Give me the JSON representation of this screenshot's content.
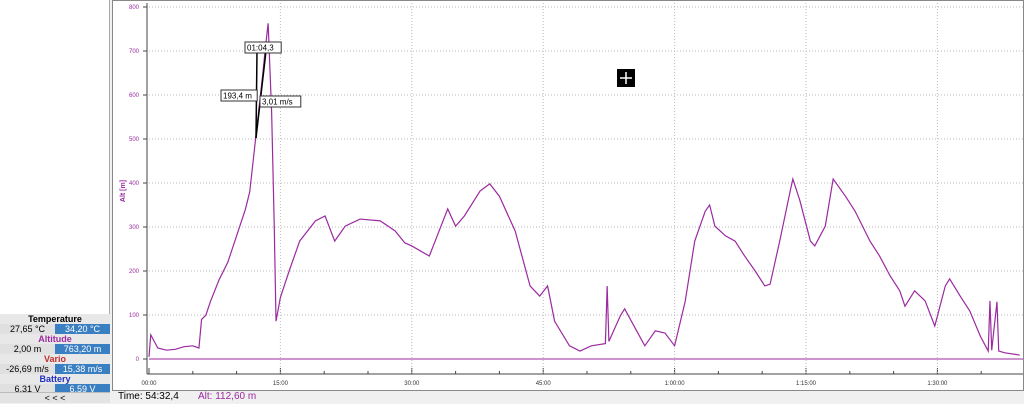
{
  "sensors": [
    {
      "title": "Temperature",
      "min": "27,65 °C",
      "max": "34,20 °C",
      "color": "#000000"
    },
    {
      "title": "Altitude",
      "min": "2,00 m",
      "max": "763,20 m",
      "color": "#9b2aa0"
    },
    {
      "title": "Vario",
      "min": "-26,69 m/s",
      "max": "15,38 m/s",
      "color": "#c03030"
    },
    {
      "title": "Battery",
      "min": "6,31 V",
      "max": "6,59 V",
      "color": "#2030c0"
    }
  ],
  "collapse_label": "< < <",
  "status": {
    "time": "Time: 54:32,4",
    "alt": "Alt: 112,60 m",
    "alt_color": "#9b2aa0"
  },
  "chart_data": {
    "type": "line",
    "ylabel": "Alt [m]",
    "ylim": [
      0,
      800
    ],
    "yticks": [
      0,
      100,
      200,
      300,
      400,
      500,
      600,
      700,
      800
    ],
    "ytick_labels": [
      "0",
      "100",
      "200",
      "300",
      "400",
      "500",
      "600",
      "700",
      "800"
    ],
    "xlim_minutes": [
      0,
      99.4
    ],
    "xticks_minutes": [
      0,
      15,
      30,
      45,
      60,
      75,
      90
    ],
    "xtick_labels": [
      "00:00",
      "15:00",
      "30:00",
      "45:00",
      "1:00:00",
      "1:15:00",
      "1:30:00"
    ],
    "grid": true,
    "line_color": "#9b2aa0",
    "series": [
      {
        "x": [
          0,
          0.2,
          0.6,
          1,
          2,
          3,
          4,
          5,
          5.7,
          6,
          6.5,
          7,
          8,
          9,
          10,
          11,
          11.5,
          12,
          12.5,
          13,
          13.3,
          13.6,
          14,
          14.3,
          14.5,
          15,
          16,
          17.2,
          19,
          20.1,
          21.2,
          22.4,
          24.1,
          26.4,
          28.1,
          29.2,
          30,
          32,
          34.1,
          35,
          36,
          37.8,
          38.9,
          40,
          41.8,
          43.5,
          44.6,
          45.5,
          46.3,
          48,
          49.2,
          50.5,
          52.1,
          52.3,
          52.5,
          53.8,
          54.3,
          55.5,
          56.6,
          57.8,
          58.9,
          60,
          61.2,
          62.3,
          63.5,
          64,
          64.6,
          65.8,
          66.9,
          68,
          69.2,
          70.3,
          70.9,
          72,
          73.2,
          73.5,
          74.3,
          75.5,
          76,
          77.2,
          78.1,
          79.5,
          80.6,
          82.3,
          83.4,
          84.6,
          85.7,
          86.3,
          87.4,
          88.6,
          89.7,
          90.9,
          91.4,
          92.6,
          93.7,
          94.9,
          95.8,
          96,
          96.2,
          96.8,
          97,
          97.7,
          99.4
        ],
        "y": [
          5,
          55,
          40,
          25,
          20,
          22,
          28,
          30,
          25,
          90,
          100,
          130,
          180,
          220,
          280,
          340,
          380,
          470,
          560,
          650,
          710,
          763,
          560,
          300,
          86,
          140,
          200,
          268,
          314,
          325,
          268,
          302,
          318,
          314,
          291,
          264,
          257,
          234,
          341,
          302,
          325,
          382,
          398,
          370,
          291,
          166,
          143,
          166,
          86,
          30,
          18,
          30,
          35,
          166,
          40,
          98,
          114,
          70,
          30,
          64,
          59,
          30,
          130,
          268,
          336,
          350,
          302,
          280,
          268,
          234,
          200,
          166,
          170,
          268,
          382,
          409,
          360,
          268,
          257,
          302,
          409,
          370,
          336,
          268,
          234,
          189,
          155,
          120,
          155,
          132,
          75,
          166,
          182,
          143,
          109,
          52,
          18,
          132,
          20,
          130,
          18,
          14,
          9
        ]
      }
    ],
    "annotations": [
      "01:04,3",
      "193,4 m",
      "3,01 m/s"
    ]
  }
}
